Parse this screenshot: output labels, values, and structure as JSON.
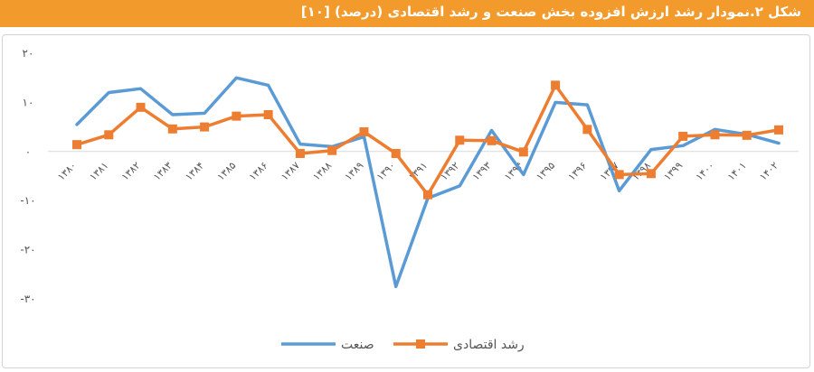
{
  "title": "شکل ۲.نمودار رشد ارزش افزوده بخش صنعت و رشد اقتصادی (درصد) [۱۰]",
  "chart_data": {
    "type": "line",
    "title": "",
    "xlabel": "",
    "ylabel": "",
    "ylim": [
      -30,
      20
    ],
    "yticks": [
      20,
      10,
      0,
      -10,
      -20,
      -30
    ],
    "ytick_labels": [
      "۲۰",
      "۱۰",
      "۰",
      "-۱۰",
      "-۲۰",
      "-۳۰"
    ],
    "grid": false,
    "legend_position": "bottom",
    "categories": [
      "۱۳۸۰",
      "۱۳۸۱",
      "۱۳۸۲",
      "۱۳۸۳",
      "۱۳۸۴",
      "۱۳۸۵",
      "۱۳۸۶",
      "۱۳۸۷",
      "۱۳۸۸",
      "۱۳۸۹",
      "۱۳۹۰",
      "۱۳۹۱",
      "۱۳۹۲",
      "۱۳۹۳",
      "۱۳۹۴",
      "۱۳۹۵",
      "۱۳۹۶",
      "۱۳۹۷",
      "۱۳۹۸",
      "۱۳۹۹",
      "۱۴۰۰",
      "۱۴۰۱",
      "۱۴۰۲"
    ],
    "series": [
      {
        "name": "صنعت",
        "color": "#5b9bd5",
        "marker": "none",
        "values": [
          5.5,
          12,
          12.8,
          7.5,
          7.8,
          15,
          13.5,
          1.5,
          1,
          3,
          -27.5,
          -9.5,
          -7,
          4.3,
          -4.7,
          10,
          9.5,
          -8,
          0.4,
          1.2,
          4.5,
          3.5,
          1.7
        ]
      },
      {
        "name": "رشد اقتصادی",
        "color": "#ed7d31",
        "marker": "square",
        "values": [
          1.4,
          3.4,
          9,
          4.6,
          5,
          7.2,
          7.5,
          -0.4,
          0.2,
          4,
          -0.4,
          -8.8,
          2.3,
          2.2,
          -0.1,
          13.5,
          4.5,
          -4.7,
          -4.5,
          3.1,
          3.4,
          3.3,
          4.4
        ]
      }
    ]
  }
}
